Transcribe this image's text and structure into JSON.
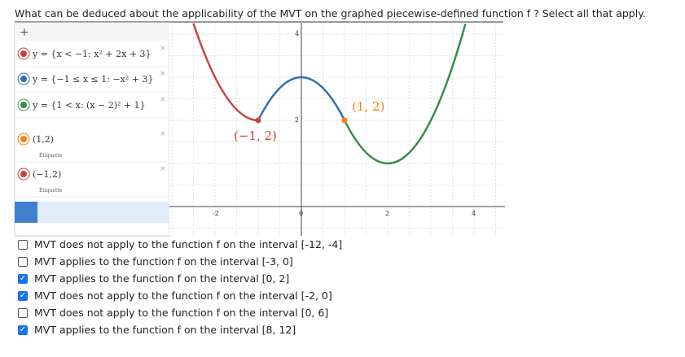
{
  "question": "What can be deduced about the applicability of the MVT on the graphed piecewise-defined function f ? Select all that apply.",
  "algebra": {
    "entries": [
      {
        "text": "y = {x < −1: x² + 2x + 3}",
        "color": "#c74440"
      },
      {
        "text": "y = {−1 ≤ x ≤ 1: −x² + 3}",
        "color": "#2d70b3"
      },
      {
        "text": "y = {1 < x: (x − 2)² + 1}",
        "color": "#388c46"
      },
      {
        "text": "(1,2)",
        "color": "#fa7e19",
        "sub": "Étiquette"
      },
      {
        "text": "(−1,2)",
        "color": "#c74440",
        "sub": "Étiquette"
      }
    ]
  },
  "graph": {
    "x_tick_labels": [
      "-2",
      "0",
      "2",
      "4"
    ],
    "y_tick_labels": [
      "2",
      "4"
    ],
    "point_labels": [
      "(−1, 2)",
      "(1, 2)"
    ]
  },
  "options": [
    {
      "text": "MVT does not apply to the function f on the interval [-12, -4]",
      "checked": false
    },
    {
      "text": "MVT applies to the function f on the interval [-3, 0]",
      "checked": false
    },
    {
      "text": "MVT applies to the function f on the interval [0, 2]",
      "checked": true
    },
    {
      "text": "MVT does not apply to the function f on the interval [-2, 0]",
      "checked": true
    },
    {
      "text": "MVT does not apply to the function f on the interval [0, 6]",
      "checked": false
    },
    {
      "text": "MVT applies to the function f on the interval [8, 12]",
      "checked": true
    }
  ]
}
